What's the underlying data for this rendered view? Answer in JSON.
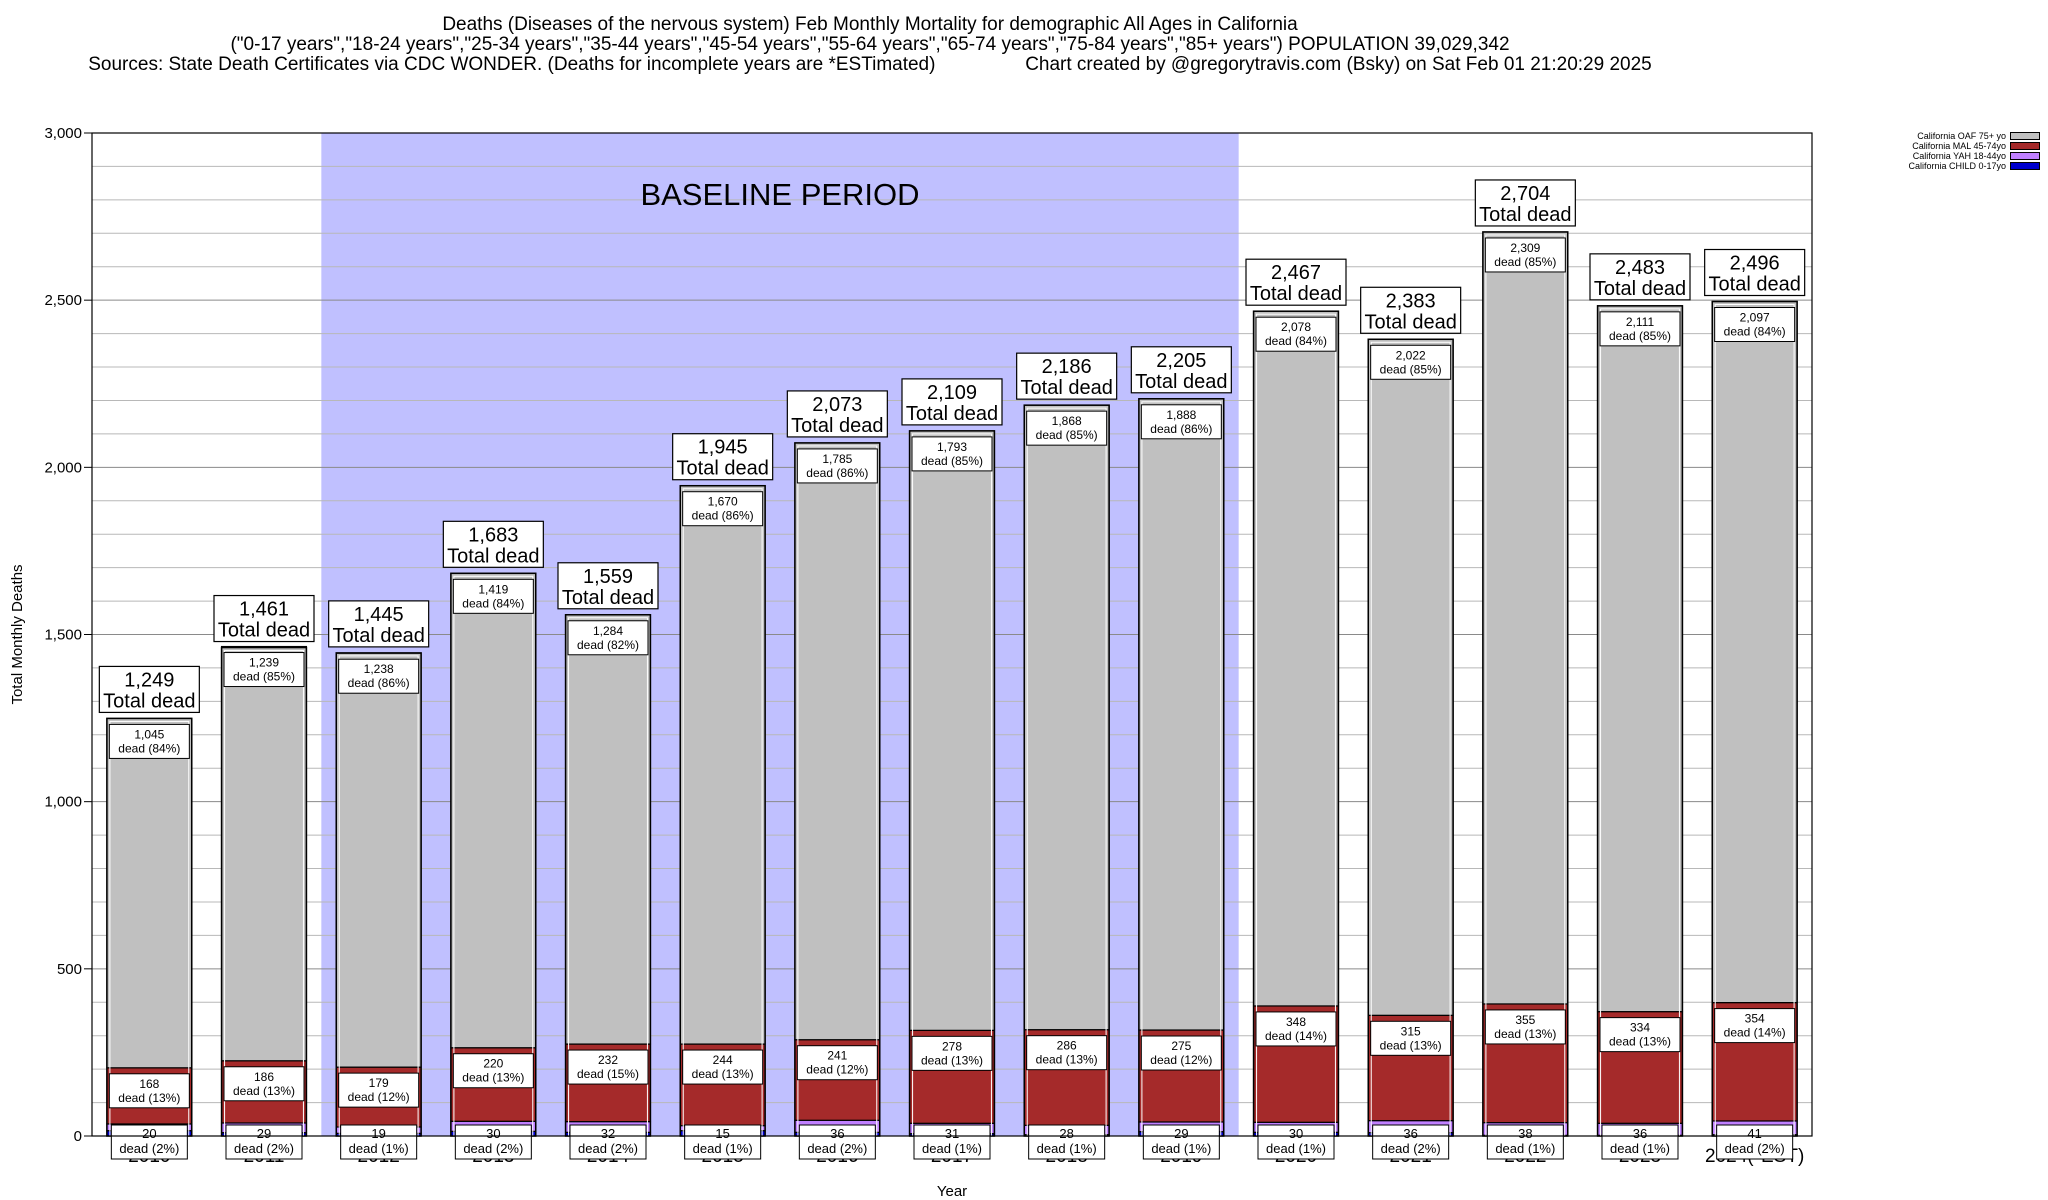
{
  "title": {
    "line1": "Deaths (Diseases of the nervous system) Feb Monthly Mortality for demographic All Ages in California",
    "line2": "(\"0-17 years\",\"18-24 years\",\"25-34 years\",\"35-44 years\",\"45-54 years\",\"55-64 years\",\"65-74 years\",\"75-84 years\",\"85+ years\") POPULATION 39,029,342",
    "line3": "Sources: State Death Certificates via CDC WONDER. (Deaths for incomplete years are *ESTimated)                 Chart created by @gregorytravis.com (Bsky) on Sat Feb 01 21:20:29 2025"
  },
  "legend": [
    {
      "label": "California OAF 75+ yo",
      "color": "#c0c0c0"
    },
    {
      "label": "California MAL 45-74yo",
      "color": "#a52a2a"
    },
    {
      "label": "California YAH 18-44yo",
      "color": "#c080ff"
    },
    {
      "label": "California CHILD 0-17yo",
      "color": "#0000cd"
    }
  ],
  "chart_data": {
    "type": "bar",
    "stacked": true,
    "xlabel": "Year",
    "ylabel": "Total Monthly Deaths",
    "ylim": [
      0,
      3000
    ],
    "yticks": [
      0,
      500,
      1000,
      1500,
      2000,
      2500,
      3000
    ],
    "ytick_labels": [
      "0",
      "500",
      "1,000",
      "1,500",
      "2,000",
      "2,500",
      "3,000"
    ],
    "grid": true,
    "legend_position": "top-right",
    "baseline_label": "BASELINE PERIOD",
    "baseline_range": [
      "2012",
      "2019"
    ],
    "baseline_color": "#c0c0ff",
    "total_suffix": "Total dead",
    "segment_suffix": "dead",
    "categories": [
      "2010",
      "2011",
      "2012",
      "2013",
      "2014",
      "2015",
      "2016",
      "2017",
      "2018",
      "2019",
      "2020",
      "2021",
      "2022",
      "2023",
      "2024(*EST)"
    ],
    "totals": [
      1249,
      1461,
      1445,
      1683,
      1559,
      1945,
      2073,
      2109,
      2186,
      2205,
      2467,
      2383,
      2704,
      2483,
      2496
    ],
    "total_labels": [
      "1,249",
      "1,461",
      "1,445",
      "1,683",
      "1,559",
      "1,945",
      "2,073",
      "2,109",
      "2,186",
      "2,205",
      "2,467",
      "2,383",
      "2,704",
      "2,483",
      "2,496"
    ],
    "series": [
      {
        "name": "California CHILD 0-17yo",
        "color": "#0000cd",
        "values": [
          16,
          10,
          8,
          14,
          11,
          16,
          11,
          7,
          4,
          13,
          11,
          10,
          2,
          2,
          4
        ]
      },
      {
        "name": "California YAH 18-44yo",
        "color": "#c080ff",
        "values": [
          20,
          29,
          19,
          30,
          32,
          15,
          36,
          31,
          28,
          29,
          30,
          36,
          38,
          36,
          41
        ],
        "labels": [
          "20",
          "29",
          "19",
          "30",
          "32",
          "15",
          "36",
          "31",
          "28",
          "29",
          "30",
          "36",
          "38",
          "36",
          "41"
        ],
        "pcts": [
          "(2%)",
          "(2%)",
          "(1%)",
          "(2%)",
          "(2%)",
          "(1%)",
          "(2%)",
          "(1%)",
          "(1%)",
          "(1%)",
          "(1%)",
          "(2%)",
          "(1%)",
          "(1%)",
          "(2%)"
        ]
      },
      {
        "name": "California MAL 45-74yo",
        "color": "#a52a2a",
        "values": [
          168,
          186,
          179,
          220,
          232,
          244,
          241,
          278,
          286,
          275,
          348,
          315,
          355,
          334,
          354
        ],
        "labels": [
          "168",
          "186",
          "179",
          "220",
          "232",
          "244",
          "241",
          "278",
          "286",
          "275",
          "348",
          "315",
          "355",
          "334",
          "354"
        ],
        "pcts": [
          "(13%)",
          "(13%)",
          "(12%)",
          "(13%)",
          "(15%)",
          "(13%)",
          "(12%)",
          "(13%)",
          "(13%)",
          "(12%)",
          "(14%)",
          "(13%)",
          "(13%)",
          "(13%)",
          "(14%)"
        ]
      },
      {
        "name": "California OAF 75+ yo",
        "color": "#c0c0c0",
        "values": [
          1045,
          1239,
          1238,
          1419,
          1284,
          1670,
          1785,
          1793,
          1868,
          1888,
          2078,
          2022,
          2309,
          2111,
          2097
        ],
        "labels": [
          "1,045",
          "1,239",
          "1,238",
          "1,419",
          "1,284",
          "1,670",
          "1,785",
          "1,793",
          "1,868",
          "1,888",
          "2,078",
          "2,022",
          "2,309",
          "2,111",
          "2,097"
        ],
        "pcts": [
          "(84%)",
          "(85%)",
          "(86%)",
          "(84%)",
          "(82%)",
          "(86%)",
          "(86%)",
          "(85%)",
          "(85%)",
          "(86%)",
          "(84%)",
          "(85%)",
          "(85%)",
          "(85%)",
          "(84%)"
        ]
      }
    ]
  }
}
